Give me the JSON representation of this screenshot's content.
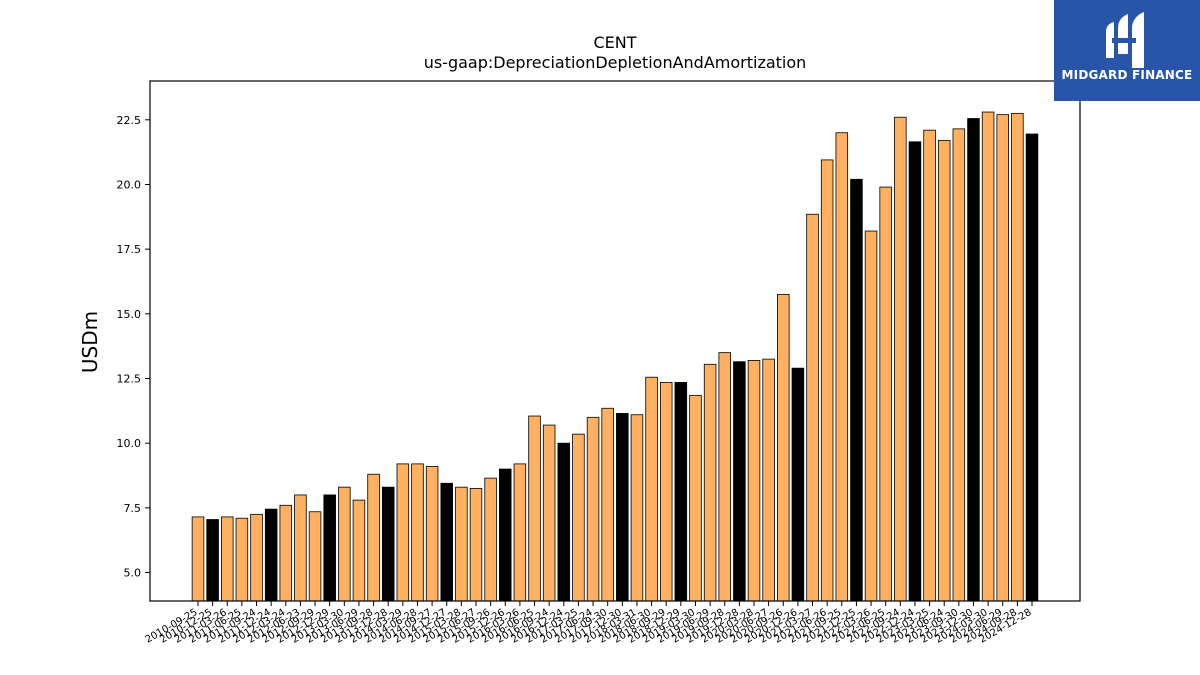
{
  "brand": {
    "name": "MIDGARD FINANCE",
    "color": "#2855a8"
  },
  "colors": {
    "annual": "#ffb060",
    "quarterly_highlight": "#000000"
  },
  "chart_data": {
    "type": "bar",
    "title": "CENT",
    "subtitle": "us-gaap:DepreciationDepletionAndAmortization",
    "ylabel": "USDm",
    "xlabel": "",
    "ylim": [
      3.9,
      24.0
    ],
    "yticks": [
      5.0,
      7.5,
      10.0,
      12.5,
      15.0,
      17.5,
      20.0,
      22.5
    ],
    "grid": false,
    "categories": [
      "2010-09-25",
      "2010-12-25",
      "2011-03-26",
      "2011-06-25",
      "2011-09-24",
      "2011-12-24",
      "2012-03-24",
      "2012-06-23",
      "2012-09-29",
      "2012-12-29",
      "2013-03-30",
      "2013-06-29",
      "2013-09-28",
      "2013-12-28",
      "2014-03-29",
      "2014-06-28",
      "2014-09-27",
      "2014-12-27",
      "2015-03-28",
      "2015-06-27",
      "2015-09-26",
      "2015-12-26",
      "2016-03-26",
      "2016-06-25",
      "2016-09-24",
      "2016-12-24",
      "2017-03-25",
      "2017-06-24",
      "2017-09-30",
      "2017-12-30",
      "2018-03-31",
      "2018-06-30",
      "2018-09-29",
      "2018-12-29",
      "2019-03-30",
      "2019-06-29",
      "2019-09-28",
      "2019-12-28",
      "2020-03-28",
      "2020-06-27",
      "2020-09-26",
      "2020-12-26",
      "2021-03-27",
      "2021-06-26",
      "2021-09-25",
      "2021-12-25",
      "2022-03-26",
      "2022-06-25",
      "2022-09-24",
      "2022-12-24",
      "2023-03-25",
      "2023-06-24",
      "2023-09-30",
      "2023-12-30",
      "2024-03-30",
      "2024-06-29",
      "2024-09-28",
      "2024-12-28"
    ],
    "values": [
      7.15,
      7.05,
      7.15,
      7.1,
      7.25,
      7.45,
      7.6,
      8.0,
      7.35,
      8.0,
      8.3,
      7.8,
      8.8,
      8.3,
      9.2,
      9.2,
      9.1,
      8.45,
      8.3,
      8.25,
      8.65,
      9.0,
      9.2,
      11.05,
      10.7,
      10.0,
      10.35,
      11.0,
      11.35,
      11.15,
      11.1,
      12.55,
      12.35,
      12.35,
      11.85,
      13.05,
      13.5,
      13.15,
      13.2,
      13.25,
      15.75,
      12.9,
      18.85,
      20.95,
      22.0,
      20.2,
      18.2,
      19.9,
      22.6,
      21.65,
      22.1,
      21.7,
      22.15,
      22.55,
      22.8,
      22.7,
      22.75,
      21.95
    ],
    "highlighted": [
      false,
      true,
      false,
      false,
      false,
      true,
      false,
      false,
      false,
      true,
      false,
      false,
      false,
      true,
      false,
      false,
      false,
      true,
      false,
      false,
      false,
      true,
      false,
      false,
      false,
      true,
      false,
      false,
      false,
      true,
      false,
      false,
      false,
      true,
      false,
      false,
      false,
      true,
      false,
      false,
      false,
      true,
      false,
      false,
      false,
      true,
      false,
      false,
      false,
      true,
      false,
      false,
      false,
      true,
      false,
      false,
      false,
      true
    ]
  }
}
